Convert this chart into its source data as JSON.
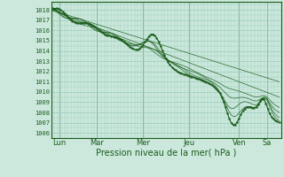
{
  "title": "",
  "xlabel": "Pression niveau de la mer( hPa )",
  "ylabel": "",
  "bg_color": "#cce8dd",
  "grid_color": "#99ccbb",
  "line_color": "#1a5c1a",
  "xlim": [
    0,
    5.75
  ],
  "ylim": [
    1005.5,
    1018.8
  ],
  "yticks": [
    1006,
    1007,
    1008,
    1009,
    1010,
    1011,
    1012,
    1013,
    1014,
    1015,
    1016,
    1017,
    1018
  ],
  "xtick_labels": [
    "Lun",
    "Mar",
    "Mer",
    "Jeu",
    "Ven",
    "Sa"
  ],
  "xtick_positions": [
    0.2,
    1.15,
    2.3,
    3.45,
    4.7,
    5.4
  ],
  "vline_positions": [
    0.2,
    1.15,
    2.3,
    3.45,
    4.7,
    5.4
  ],
  "font_size_ytick": 5,
  "font_size_xtick": 6,
  "font_size_xlabel": 7
}
